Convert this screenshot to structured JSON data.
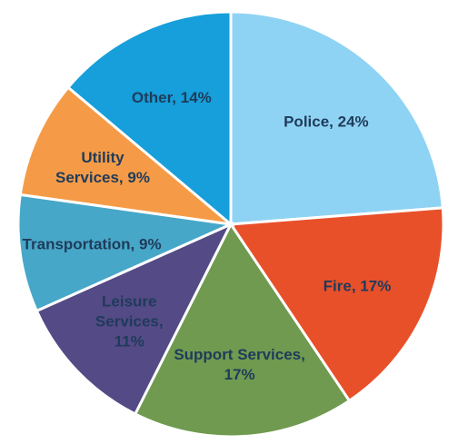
{
  "chart_data": {
    "type": "pie",
    "title": "",
    "slices": [
      {
        "name": "Police",
        "label": "Police, 24%",
        "value": 24,
        "color": "#8fd3f4",
        "label_lines": [
          "Police, 24%"
        ]
      },
      {
        "name": "Fire",
        "label": "Fire, 17%",
        "value": 17,
        "color": "#e8502a",
        "label_lines": [
          "Fire, 17%"
        ]
      },
      {
        "name": "Support Services",
        "label": "Support Services, 17%",
        "value": 17,
        "color": "#6f9a4f",
        "label_lines": [
          "Support Services,",
          "17%"
        ]
      },
      {
        "name": "Leisure Services",
        "label": "Leisure Services, 11%",
        "value": 11,
        "color": "#544a86",
        "label_lines": [
          "Leisure",
          "Services,",
          "11%"
        ]
      },
      {
        "name": "Transportation",
        "label": "Transportation, 9%",
        "value": 9,
        "color": "#47a7c8",
        "label_lines": [
          "Transportation, 9%"
        ]
      },
      {
        "name": "Utility Services",
        "label": "Utility Services, 9%",
        "value": 9,
        "color": "#f59b47",
        "label_lines": [
          "Utility",
          "Services, 9%"
        ]
      },
      {
        "name": "Other",
        "label": "Other, 14%",
        "value": 14,
        "color": "#169fda",
        "label_lines": [
          "Other, 14%"
        ]
      }
    ],
    "start_angle": "12 o'clock",
    "direction": "clockwise",
    "legend": "none"
  }
}
